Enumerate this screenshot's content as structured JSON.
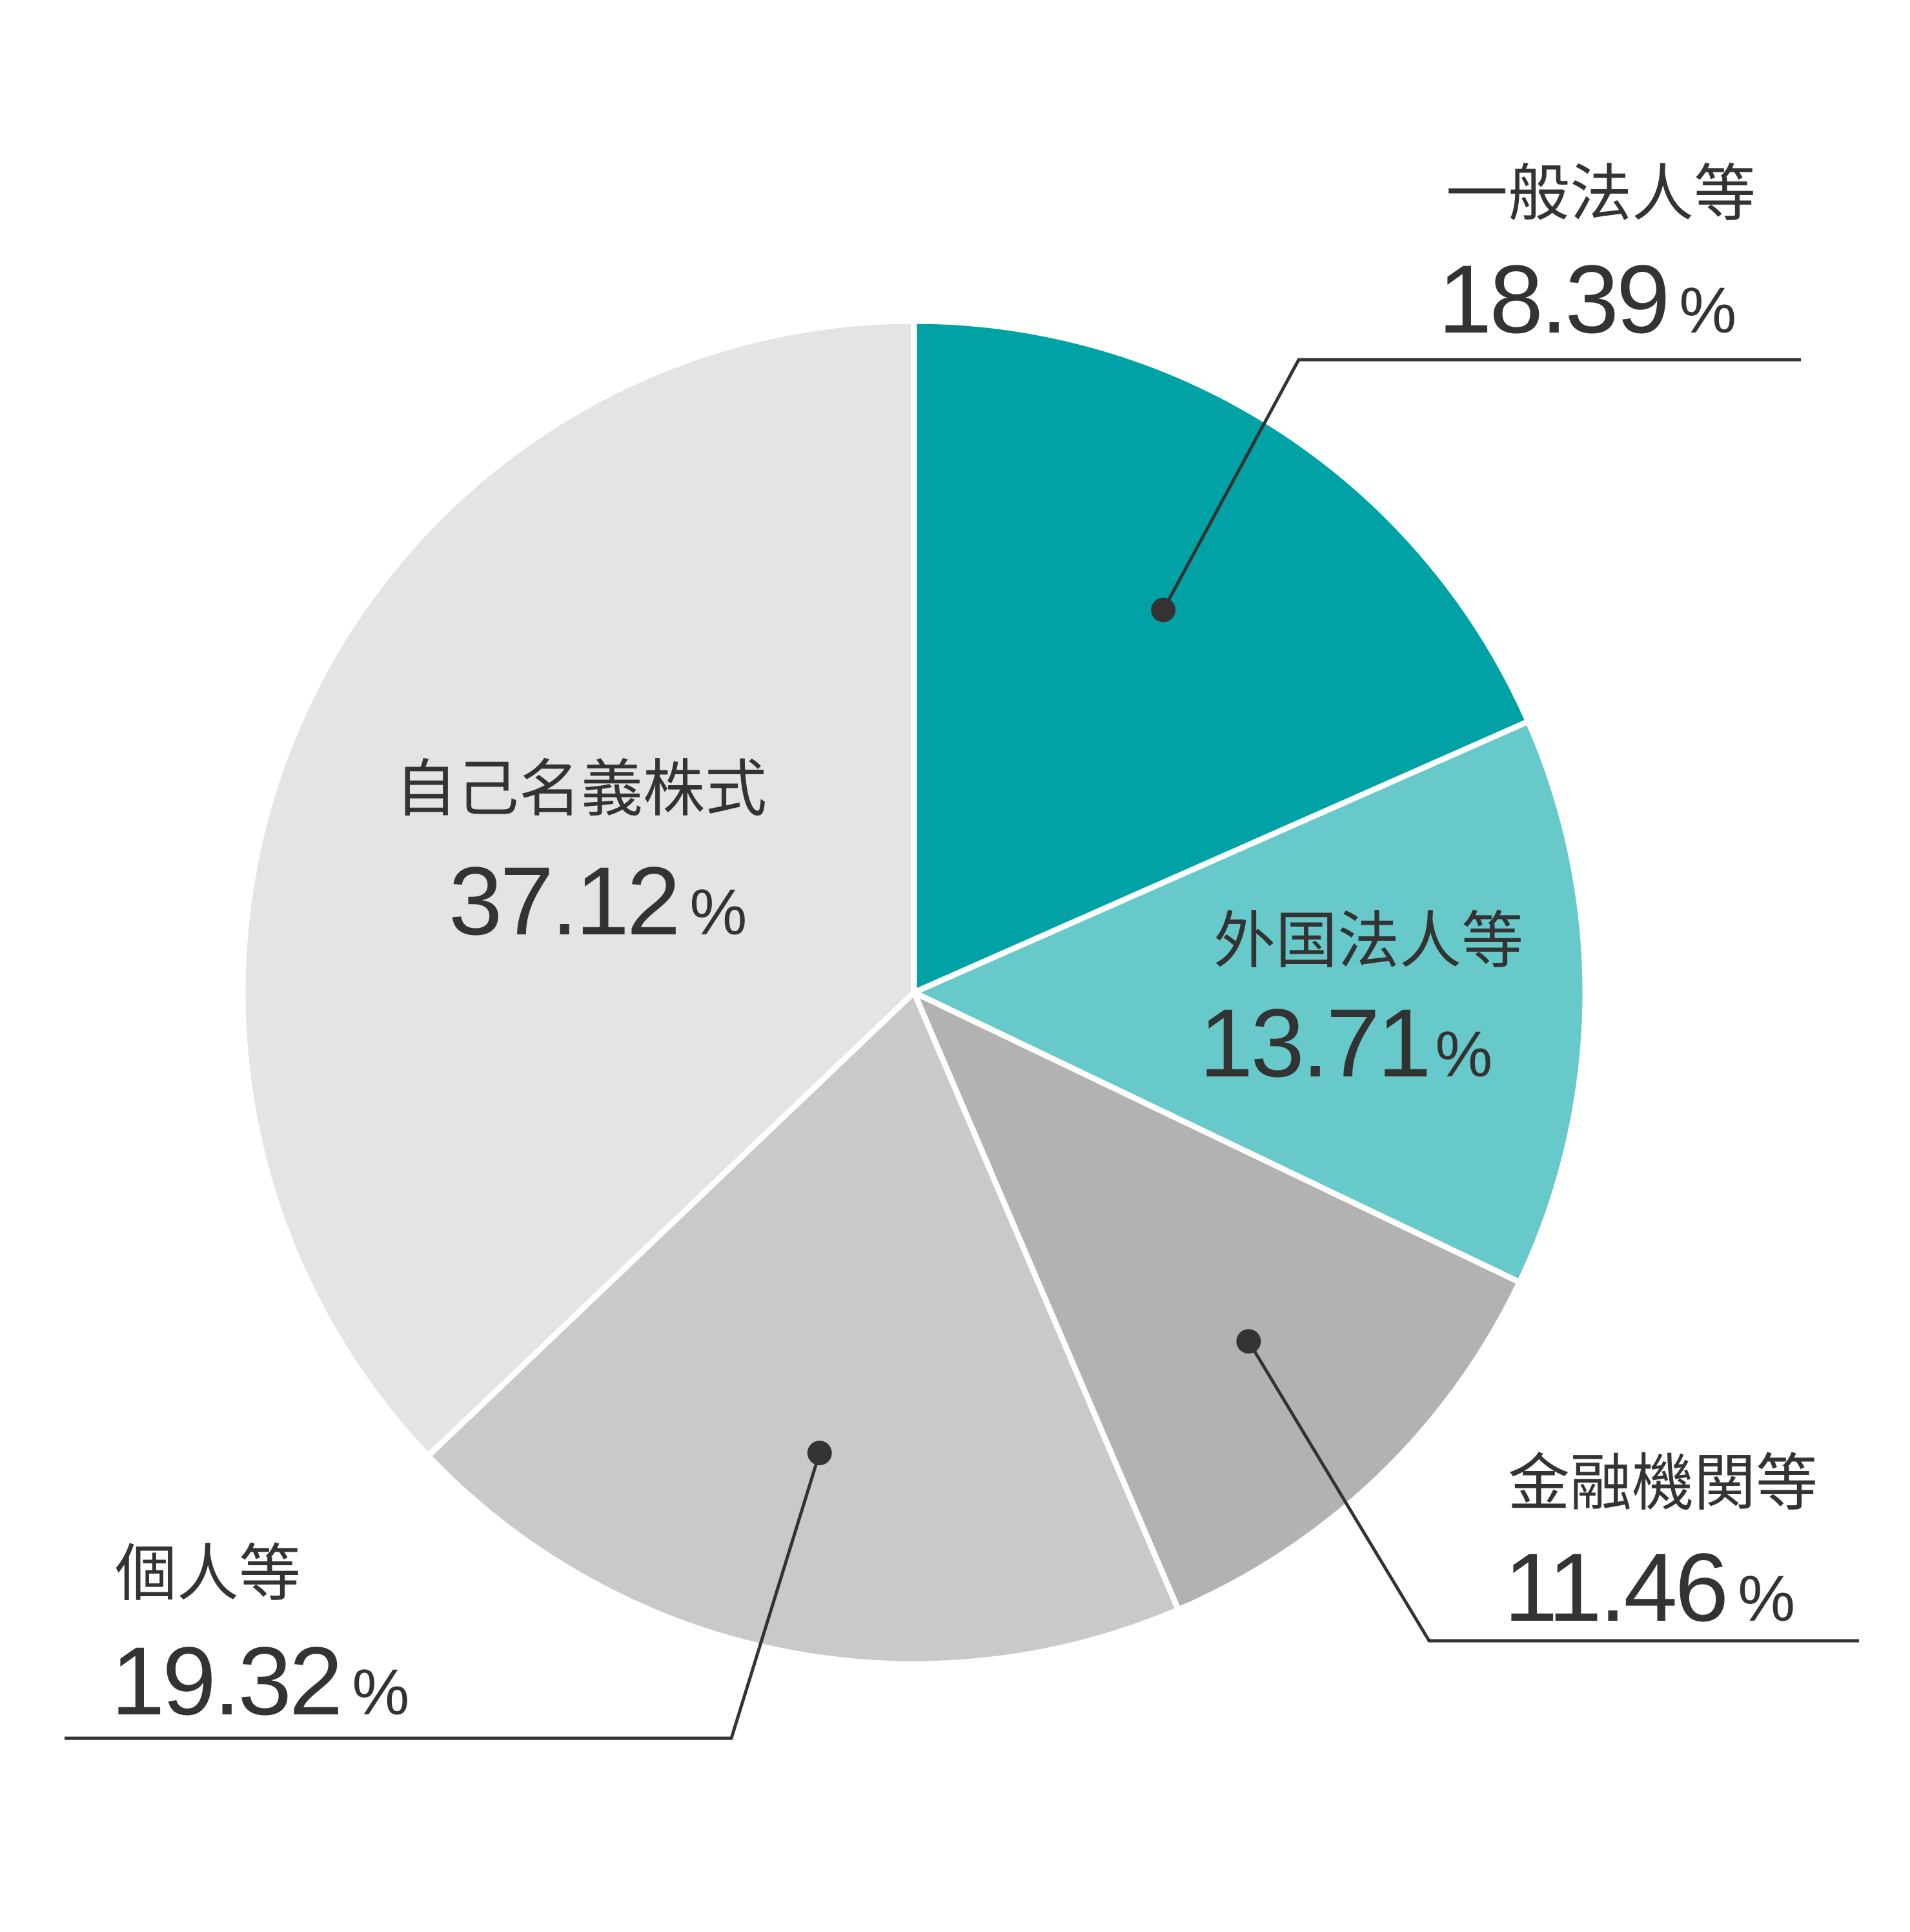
{
  "chart_data": {
    "type": "pie",
    "start": "12 o'clock",
    "direction": "clockwise",
    "slices": [
      {
        "label": "一般法人等",
        "value": 18.39,
        "display": "18.39",
        "unit": "%",
        "color": "#00A2A5",
        "callout": true
      },
      {
        "label": "外国法人等",
        "value": 13.71,
        "display": "13.71",
        "unit": "%",
        "color": "#68C9CB",
        "callout": false
      },
      {
        "label": "金融機関等",
        "value": 11.46,
        "display": "11.46",
        "unit": "%",
        "color": "#B2B2B2",
        "callout": true
      },
      {
        "label": "個人等",
        "value": 19.32,
        "display": "19.32",
        "unit": "%",
        "color": "#C9C9C9",
        "callout": true
      },
      {
        "label": "自己名義株式",
        "value": 37.12,
        "display": "37.12",
        "unit": "%",
        "color": "#E4E4E4",
        "callout": false
      }
    ],
    "slice_separator_color": "#FFFFFF",
    "legend": "none",
    "label_color": "#333333"
  }
}
